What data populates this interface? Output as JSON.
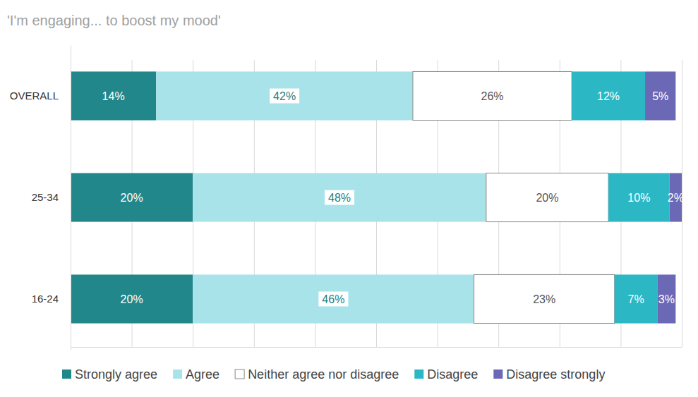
{
  "chart_data": {
    "type": "bar",
    "title": "'I'm engaging... to boost my mood'",
    "orientation": "horizontal",
    "stacked": true,
    "data_labels": true,
    "grid": true,
    "tick_labels": "y",
    "legend": "bottom",
    "categories": [
      "OVERALL",
      "25-34",
      "16-24"
    ],
    "xlim": [
      0,
      100
    ],
    "xticks": [
      0,
      10,
      20,
      30,
      40,
      50,
      60,
      70,
      80,
      90,
      100
    ],
    "series": [
      {
        "name": "Strongly agree",
        "color": "#21878b",
        "values": [
          14,
          20,
          20
        ],
        "value_labels": [
          "14%",
          "20%",
          "20%"
        ]
      },
      {
        "name": "Agree",
        "color": "#a8e3e9",
        "values": [
          42,
          48,
          46
        ],
        "value_labels": [
          "42%",
          "48%",
          "46%"
        ]
      },
      {
        "name": "Neither agree nor disagree",
        "color": "#ffffff",
        "values": [
          26,
          20,
          23
        ],
        "value_labels": [
          "26%",
          "20%",
          "23%"
        ]
      },
      {
        "name": "Disagree",
        "color": "#2bb7c4",
        "values": [
          12,
          10,
          7
        ],
        "value_labels": [
          "12%",
          "10%",
          "7%"
        ]
      },
      {
        "name": "Disagree strongly",
        "color": "#6b68b6",
        "values": [
          5,
          2,
          3
        ],
        "value_labels": [
          "5%",
          "2%",
          "3%"
        ]
      }
    ]
  }
}
